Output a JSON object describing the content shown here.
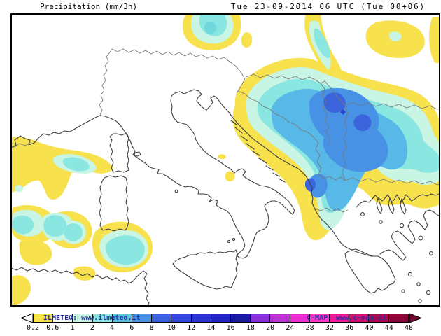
{
  "header": {
    "title": "Precipitation (mm/3h)",
    "timestamp": "Tue 23-09-2014 06 UTC (Tue 00+06)"
  },
  "palette": {
    "map_background": "#FFFFFF",
    "coastline": "#3F3F3F",
    "border_line": "#787878",
    "frame": "#000000",
    "yellow": "#F7E14D",
    "pale_cyan": "#C9F5E4",
    "cyan": "#8AE6E0",
    "cyan_deep": "#6FD8DC",
    "light_blue": "#58B9E8",
    "medium_blue": "#4792E4",
    "royal_blue": "#3B63DC",
    "deep_spot": "#2B3FD0"
  },
  "colorbar": {
    "ticks": [
      "0.2",
      "0.6",
      "1",
      "2",
      "4",
      "6",
      "8",
      "10",
      "12",
      "14",
      "16",
      "18",
      "20",
      "24",
      "28",
      "32",
      "36",
      "40",
      "44",
      "48"
    ],
    "segment_colors": [
      "#F7E14D",
      "#FFFFFF",
      "#C9F5E4",
      "#8AE6E0",
      "#58C2E0",
      "#4792E4",
      "#3B63DC",
      "#3348D8",
      "#2B35CC",
      "#2426C0",
      "#1A1A9C",
      "#8A30D4",
      "#BC30D4",
      "#E630D4",
      "#FF38C8",
      "#EE189A",
      "#CE106E",
      "#AC0A4E",
      "#8A0538"
    ],
    "left_arrow_color": "#FFFFFF",
    "right_arrow_color": "#720430",
    "branding_left": "ILMETEO: www.ilmeteo.it",
    "branding_right": "C-MAP: www.c-map.it",
    "text_color": "#2233AA"
  },
  "chart_data": {
    "type": "heatmap",
    "title": "Precipitation (mm/3h)",
    "valid_time": "Tue 23-09-2014 06 UTC (Tue 00+06)",
    "units": "mm/3h",
    "scale_levels": [
      0.2,
      0.6,
      1,
      2,
      4,
      6,
      8,
      10,
      12,
      14,
      16,
      18,
      20,
      24,
      28,
      32,
      36,
      40,
      44,
      48
    ],
    "regions_with_precip": [
      {
        "area": "Alps (top center)",
        "max_level_mm": 4
      },
      {
        "area": "Pannonia band (top right)",
        "max_level_mm": 4
      },
      {
        "area": "Balkans / Serbia-Albania (large mass)",
        "max_level_mm": 10
      },
      {
        "area": "Western Mediterranean & off Algeria/Tunisia",
        "max_level_mm": 4
      },
      {
        "area": "NE Greece fringe",
        "max_level_mm": 0.6
      }
    ]
  }
}
